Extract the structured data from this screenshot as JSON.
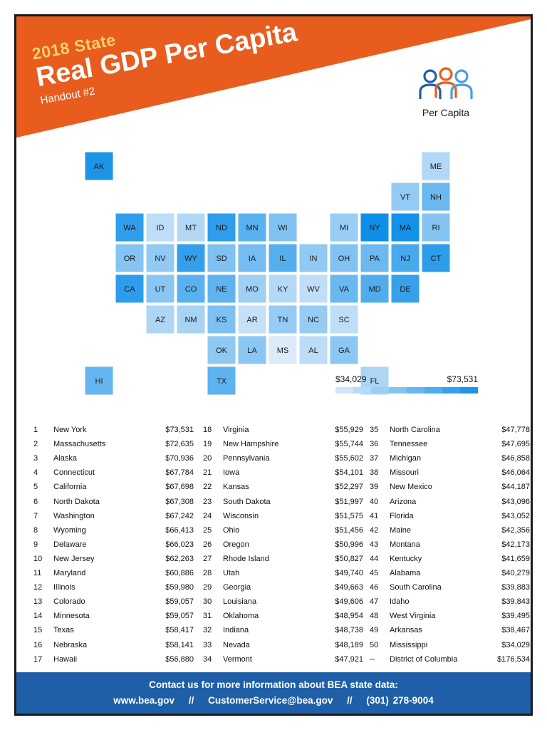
{
  "header": {
    "subtitle": "2018 State",
    "title": "Real GDP Per Capita",
    "handout": "Handout #2",
    "banner_color": "#e85c1e"
  },
  "logo": {
    "label": "Per Capita",
    "icon": "three-people-icon",
    "colors": [
      "#1f5fa8",
      "#e85c1e",
      "#4a9fe0"
    ]
  },
  "map": {
    "type": "choropleth",
    "legend": {
      "min_label": "$34,029",
      "max_label": "$73,531",
      "min": 34029,
      "max": 73531
    },
    "color_low": "#dcebfa",
    "color_high": "#0f8fe8",
    "label_color": "#1a1a1a",
    "outline_color": "#ffffff"
  },
  "chart_data": {
    "type": "table",
    "title": "2018 State Real GDP Per Capita",
    "columns": [
      "rank",
      "state",
      "value"
    ],
    "abbr": [
      "NY",
      "MA",
      "AK",
      "CT",
      "CA",
      "ND",
      "WA",
      "WY",
      "DE",
      "NJ",
      "MD",
      "IL",
      "CO",
      "MN",
      "TX",
      "NE",
      "HI",
      "VA",
      "NH",
      "PA",
      "IA",
      "KS",
      "SD",
      "WI",
      "OH",
      "OR",
      "RI",
      "UT",
      "GA",
      "LA",
      "OK",
      "IN",
      "NV",
      "VT",
      "NC",
      "TN",
      "MI",
      "MO",
      "NM",
      "AZ",
      "FL",
      "ME",
      "MT",
      "KY",
      "AL",
      "SC",
      "ID",
      "WV",
      "AR",
      "MS"
    ],
    "rows": [
      [
        "1",
        "New York",
        "$73,531",
        73531
      ],
      [
        "2",
        "Massachusetts",
        "$72,635",
        72635
      ],
      [
        "3",
        "Alaska",
        "$70,936",
        70936
      ],
      [
        "4",
        "Connecticut",
        "$67,784",
        67784
      ],
      [
        "5",
        "California",
        "$67,698",
        67698
      ],
      [
        "6",
        "North Dakota",
        "$67,308",
        67308
      ],
      [
        "7",
        "Washington",
        "$67,242",
        67242
      ],
      [
        "8",
        "Wyoming",
        "$66,413",
        66413
      ],
      [
        "9",
        "Delaware",
        "$66,023",
        66023
      ],
      [
        "10",
        "New Jersey",
        "$62,263",
        62263
      ],
      [
        "11",
        "Maryland",
        "$60,886",
        60886
      ],
      [
        "12",
        "Illinois",
        "$59,980",
        59980
      ],
      [
        "13",
        "Colorado",
        "$59,057",
        59057
      ],
      [
        "14",
        "Minnesota",
        "$59,057",
        59057
      ],
      [
        "15",
        "Texas",
        "$58,417",
        58417
      ],
      [
        "16",
        "Nebraska",
        "$58,141",
        58141
      ],
      [
        "17",
        "Hawaii",
        "$56,880",
        56880
      ],
      [
        "18",
        "Virginia",
        "$55,929",
        55929
      ],
      [
        "19",
        "New Hampshire",
        "$55,744",
        55744
      ],
      [
        "20",
        "Pennsylvania",
        "$55,602",
        55602
      ],
      [
        "21",
        "Iowa",
        "$54,101",
        54101
      ],
      [
        "22",
        "Kansas",
        "$52,297",
        52297
      ],
      [
        "23",
        "South Dakota",
        "$51,997",
        51997
      ],
      [
        "24",
        "Wisconsin",
        "$51,575",
        51575
      ],
      [
        "25",
        "Ohio",
        "$51,456",
        51456
      ],
      [
        "26",
        "Oregon",
        "$50,996",
        50996
      ],
      [
        "27",
        "Rhode Island",
        "$50,827",
        50827
      ],
      [
        "28",
        "Utah",
        "$49,740",
        49740
      ],
      [
        "29",
        "Georgia",
        "$49,663",
        49663
      ],
      [
        "30",
        "Louisiana",
        "$49,606",
        49606
      ],
      [
        "31",
        "Oklahoma",
        "$48,954",
        48954
      ],
      [
        "32",
        "Indiana",
        "$48,738",
        48738
      ],
      [
        "33",
        "Nevada",
        "$48,189",
        48189
      ],
      [
        "34",
        "Vermont",
        "$47,921",
        47921
      ],
      [
        "35",
        "North Carolina",
        "$47,778",
        47778
      ],
      [
        "36",
        "Tennessee",
        "$47,695",
        47695
      ],
      [
        "37",
        "Michigan",
        "$46,858",
        46858
      ],
      [
        "38",
        "Missouri",
        "$46,064",
        46064
      ],
      [
        "39",
        "New Mexico",
        "$44,187",
        44187
      ],
      [
        "40",
        "Arizona",
        "$43,096",
        43096
      ],
      [
        "41",
        "Florida",
        "$43,052",
        43052
      ],
      [
        "42",
        "Maine",
        "$42,356",
        42356
      ],
      [
        "43",
        "Montana",
        "$42,173",
        42173
      ],
      [
        "44",
        "Kentucky",
        "$41,659",
        41659
      ],
      [
        "45",
        "Alabama",
        "$40,279",
        40279
      ],
      [
        "46",
        "South Carolina",
        "$39,883",
        39883
      ],
      [
        "47",
        "Idaho",
        "$39,843",
        39843
      ],
      [
        "48",
        "West Virginia",
        "$39,495",
        39495
      ],
      [
        "49",
        "Arkansas",
        "$38,467",
        38467
      ],
      [
        "50",
        "Mississippi",
        "$34,029",
        34029
      ],
      [
        "--",
        "District of Columbia",
        "$176,534",
        176534
      ]
    ]
  },
  "footer": {
    "line1": "Contact us for more information about BEA state data:",
    "website": "www.bea.gov",
    "email": "CustomerService@bea.gov",
    "phone": "(301) 278-9004",
    "separator": "//"
  }
}
